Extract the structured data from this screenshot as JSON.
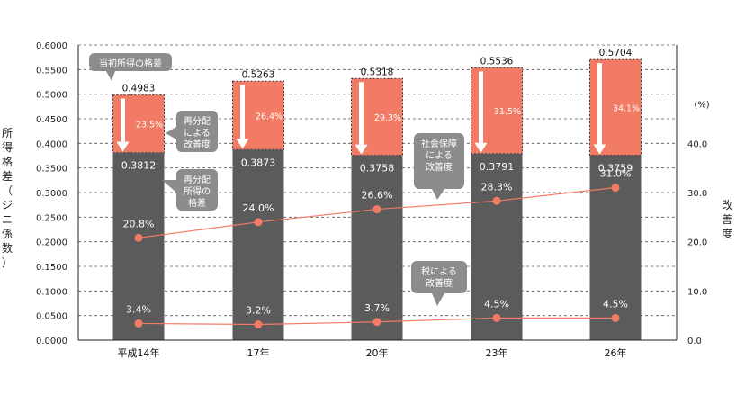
{
  "chart_data": {
    "type": "bar",
    "categories": [
      "平成14年",
      "17年",
      "20年",
      "23年",
      "26年"
    ],
    "series": [
      {
        "name": "当初所得の格差",
        "values": [
          0.4983,
          0.5263,
          0.5318,
          0.5536,
          0.5704
        ]
      },
      {
        "name": "再分配所得の格差",
        "values": [
          0.3812,
          0.3873,
          0.3758,
          0.3791,
          0.3759
        ]
      },
      {
        "name": "再分配による改善度",
        "values": [
          23.5,
          26.4,
          29.3,
          31.5,
          34.1
        ],
        "unit": "%"
      },
      {
        "name": "社会保障による改善度",
        "values": [
          20.8,
          24.0,
          26.6,
          28.3,
          31.0
        ],
        "unit": "%",
        "axis": "right"
      },
      {
        "name": "税による改善度",
        "values": [
          3.4,
          3.2,
          3.7,
          4.5,
          4.5
        ],
        "unit": "%",
        "axis": "right"
      }
    ],
    "left_axis": {
      "label": "所得格差（ジニ係数）",
      "ylim": [
        0,
        0.6
      ],
      "ticks": [
        "0.0000",
        "0.0500",
        "0.1000",
        "0.1500",
        "0.2000",
        "0.2500",
        "0.3000",
        "0.3500",
        "0.4000",
        "0.4500",
        "0.5000",
        "0.5500",
        "0.6000"
      ]
    },
    "right_axis": {
      "label": "改善度",
      "unit": "(%)",
      "ylim": [
        0,
        60
      ],
      "ticks": [
        "0.0",
        "10.0",
        "20.0",
        "30.0",
        "40.0"
      ]
    },
    "grid": true,
    "callouts": {
      "initial": "当初所得の格差",
      "redist": "再分配による改善度",
      "redist_income": "再分配所得の格差",
      "social": "社会保障による改善度",
      "tax": "税による改善度"
    },
    "colors": {
      "bar_dark": "#5b5b5b",
      "bar_red": "#f27b65",
      "line": "#f27b65",
      "callout": "#8c8c8c"
    }
  }
}
